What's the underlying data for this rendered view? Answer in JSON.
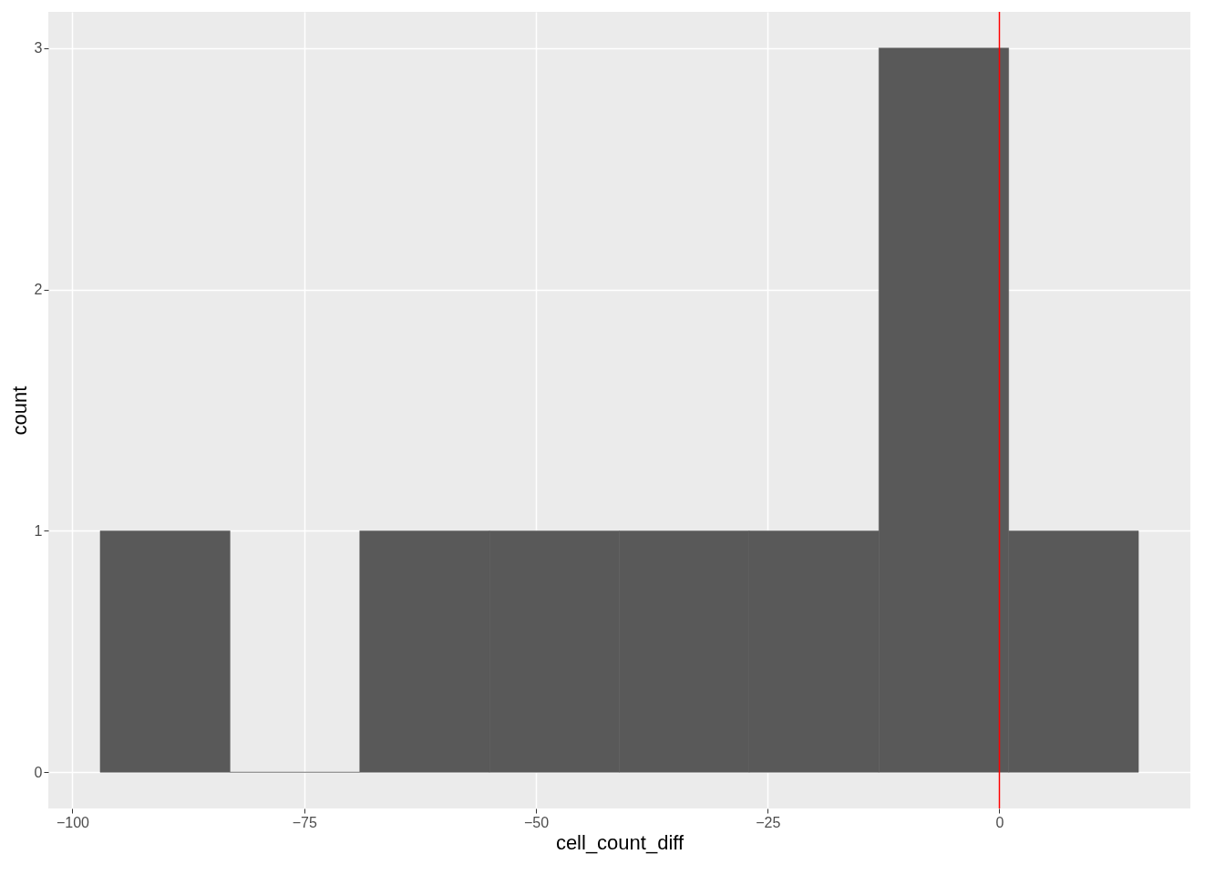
{
  "chart_data": {
    "type": "histogram",
    "xlabel": "cell_count_diff",
    "ylabel": "count",
    "bins": [
      -97,
      -83,
      -69,
      -55,
      -41,
      -27,
      -13,
      1,
      15
    ],
    "values": [
      1,
      0,
      1,
      1,
      1,
      1,
      3,
      1
    ],
    "color": "#595959",
    "xlim": [
      -102.6,
      20.6
    ],
    "xticks": [
      -100,
      -75,
      -50,
      -25,
      0
    ],
    "ylim": [
      -0.15,
      3.15
    ],
    "yticks": [
      0,
      1,
      2,
      3
    ],
    "grid": true,
    "ref_lines": [
      {
        "axis": "x",
        "value": 0,
        "color": "#ff0000"
      }
    ]
  }
}
